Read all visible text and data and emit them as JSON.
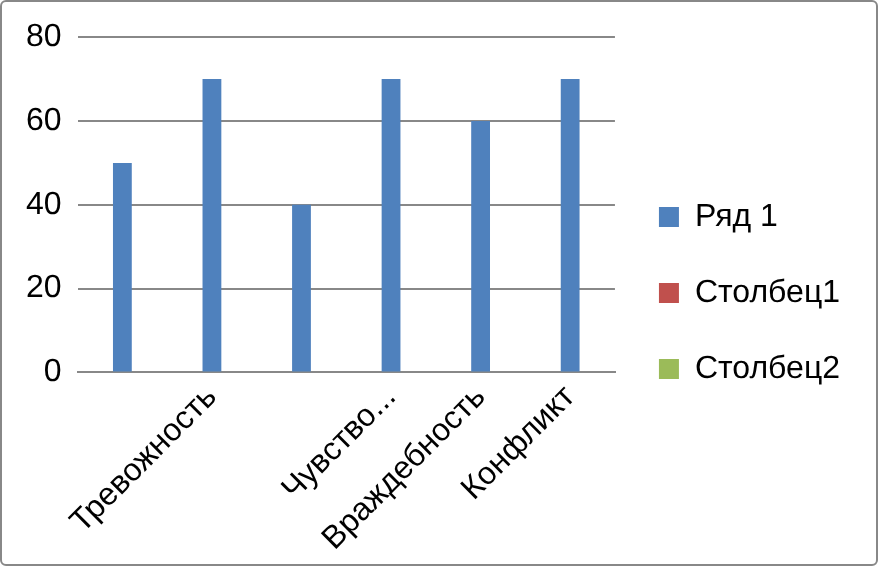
{
  "chart_data": {
    "type": "bar",
    "categories": [
      null,
      "Тревожность",
      null,
      "Чувство...",
      "Враждебность",
      "Конфликт"
    ],
    "series": [
      {
        "name": "Ряд 1",
        "color": "#4f81bd",
        "values": [
          50,
          70,
          40,
          70,
          60,
          70
        ]
      },
      {
        "name": "Столбец1",
        "color": "#c0504d",
        "values": [
          null,
          null,
          null,
          null,
          null,
          null
        ]
      },
      {
        "name": "Столбец2",
        "color": "#9bbb59",
        "values": [
          null,
          null,
          null,
          null,
          null,
          null
        ]
      }
    ],
    "ylim": [
      0,
      80
    ],
    "yticks": [
      0,
      20,
      40,
      60,
      80
    ],
    "grid": "y",
    "legend": "right"
  }
}
